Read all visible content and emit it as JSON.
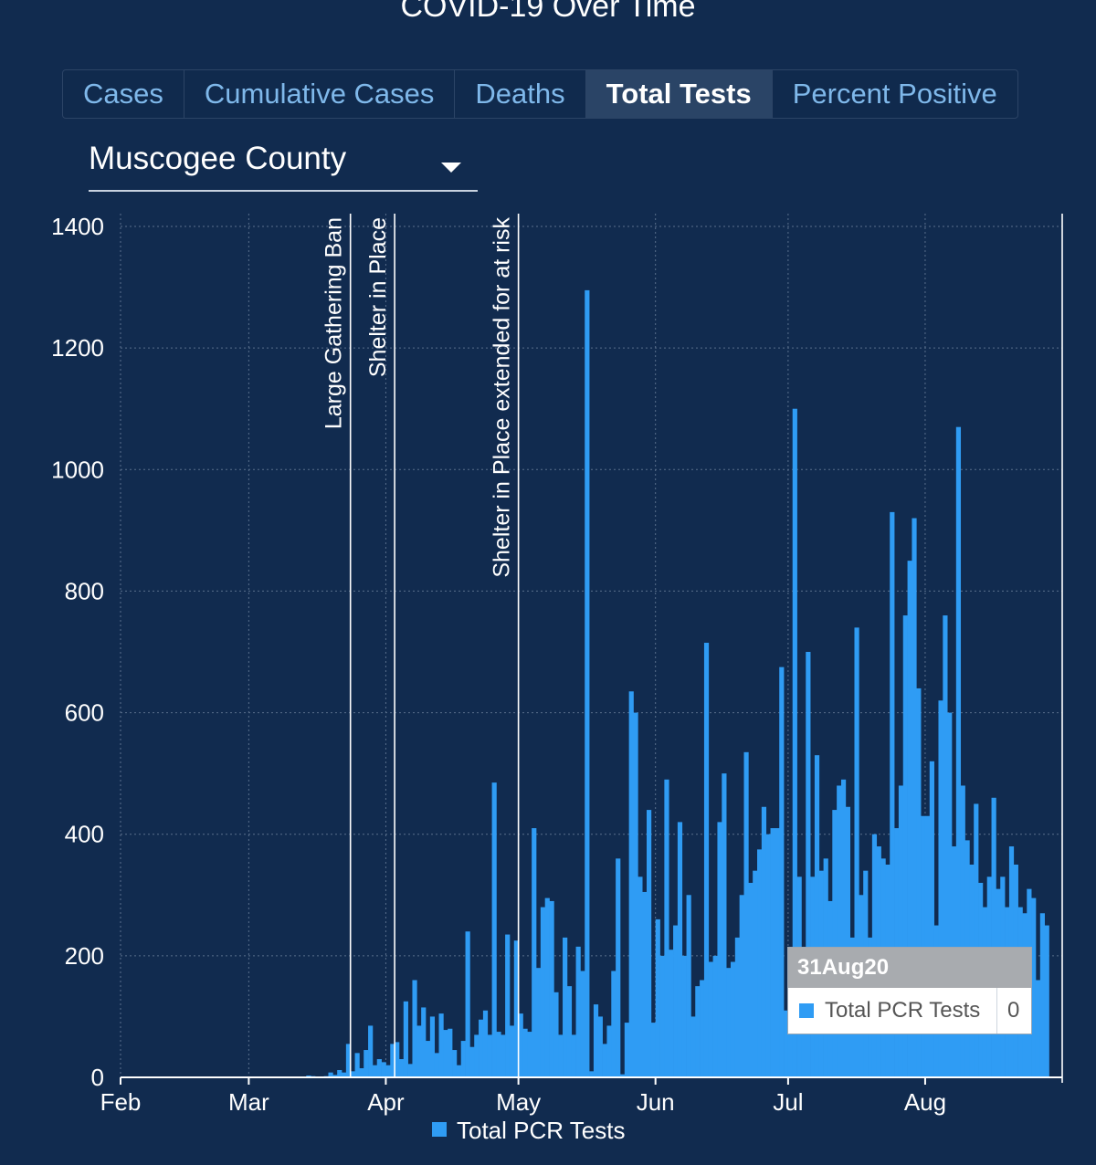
{
  "title": "COVID-19 Over Time",
  "tabs": [
    {
      "label": "Cases",
      "active": false
    },
    {
      "label": "Cumulative Cases",
      "active": false
    },
    {
      "label": "Deaths",
      "active": false
    },
    {
      "label": "Total Tests",
      "active": true
    },
    {
      "label": "Percent Positive",
      "active": false
    }
  ],
  "county_select": {
    "value": "Muscogee County"
  },
  "tooltip": {
    "date": "31Aug20",
    "series": "Total PCR Tests",
    "value": "0"
  },
  "colors": {
    "background": "#112b4f",
    "bar": "#2f9cf4",
    "grid": "#5a6f8c",
    "tab_text": "#7fb8ea"
  },
  "chart_data": {
    "type": "bar",
    "title": "",
    "xlabel": "",
    "ylabel": "",
    "ylim": [
      0,
      1400
    ],
    "yticks": [
      0,
      200,
      400,
      600,
      800,
      1000,
      1200,
      1400
    ],
    "x_start_date": "2020-02-01",
    "x_end_date": "2020-08-31",
    "x_tick_labels": [
      "Feb",
      "Mar",
      "Apr",
      "May",
      "Jun",
      "Jul",
      "Aug"
    ],
    "x_tick_dates": [
      "2020-02-01",
      "2020-03-01",
      "2020-04-01",
      "2020-05-01",
      "2020-06-01",
      "2020-07-01",
      "2020-08-01"
    ],
    "grid": true,
    "legend": {
      "placement": "bottom",
      "entries": [
        "Total PCR Tests"
      ]
    },
    "annotations": [
      {
        "label": "Large Gathering Ban",
        "date": "2020-03-24"
      },
      {
        "label": "Shelter in Place",
        "date": "2020-04-03"
      },
      {
        "label": "Shelter in Place extended for at risk",
        "date": "2020-05-01"
      }
    ],
    "series": [
      {
        "name": "Total PCR Tests",
        "start_date": "2020-03-14",
        "values": [
          3,
          2,
          1,
          0,
          2,
          8,
          4,
          12,
          8,
          55,
          10,
          40,
          15,
          45,
          85,
          20,
          30,
          25,
          20,
          55,
          58,
          30,
          125,
          22,
          160,
          85,
          115,
          60,
          100,
          40,
          105,
          78,
          80,
          45,
          20,
          60,
          240,
          50,
          70,
          95,
          110,
          70,
          485,
          75,
          70,
          235,
          85,
          225,
          105,
          80,
          75,
          410,
          180,
          280,
          295,
          290,
          140,
          70,
          230,
          150,
          70,
          215,
          175,
          1295,
          10,
          120,
          100,
          55,
          85,
          175,
          360,
          5,
          90,
          635,
          600,
          330,
          305,
          440,
          90,
          260,
          200,
          490,
          210,
          250,
          420,
          200,
          300,
          100,
          150,
          160,
          715,
          190,
          200,
          420,
          500,
          180,
          190,
          230,
          300,
          535,
          320,
          340,
          375,
          445,
          400,
          410,
          410,
          675,
          110,
          130,
          1100,
          330,
          200,
          700,
          330,
          530,
          340,
          360,
          290,
          440,
          480,
          490,
          445,
          230,
          740,
          300,
          340,
          230,
          400,
          380,
          360,
          350,
          930,
          410,
          480,
          760,
          850,
          920,
          640,
          430,
          430,
          520,
          250,
          620,
          760,
          600,
          380,
          1070,
          480,
          390,
          350,
          450,
          320,
          280,
          330,
          460,
          310,
          330,
          280,
          380,
          350,
          280,
          270,
          310,
          295,
          160,
          270,
          250,
          0
        ]
      }
    ]
  }
}
